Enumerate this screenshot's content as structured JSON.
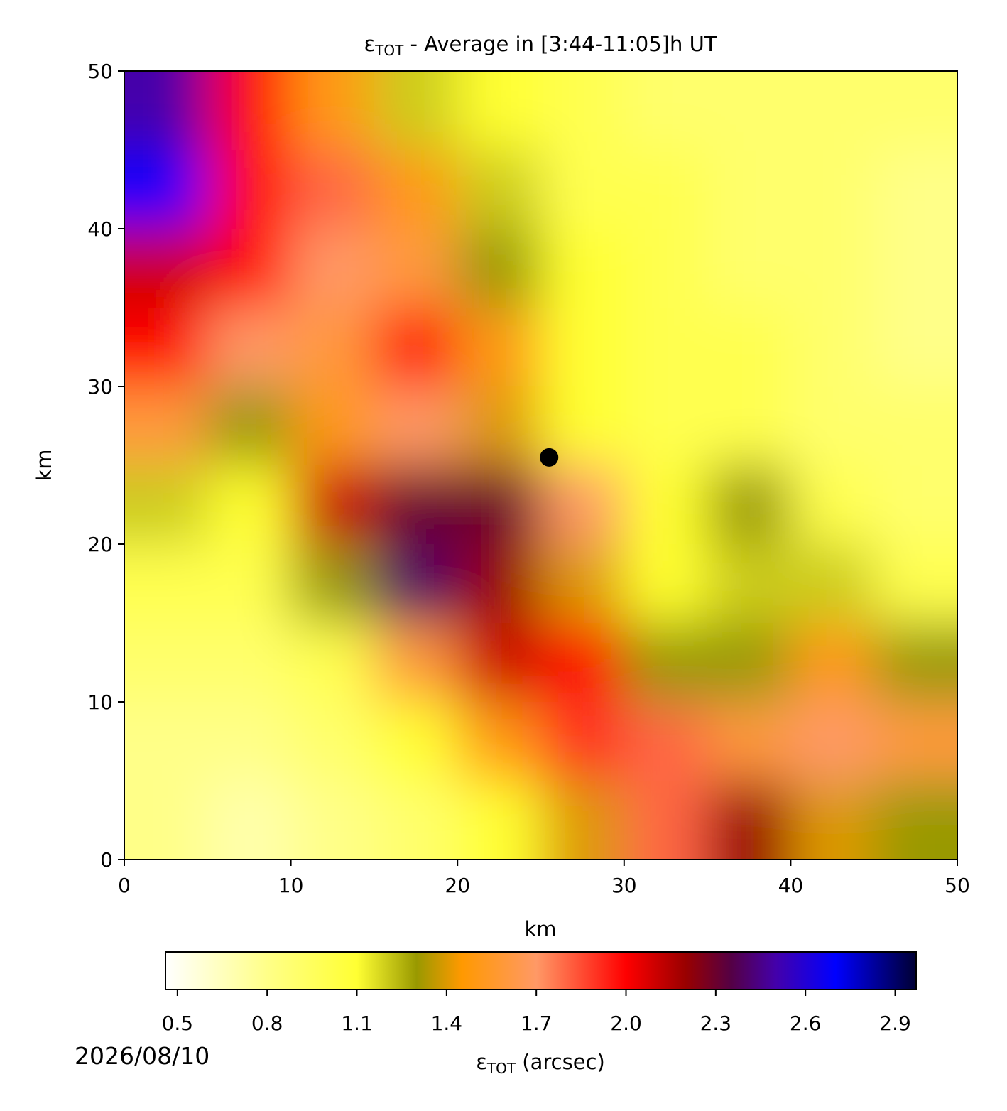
{
  "chart_data": {
    "type": "heatmap",
    "title_symbol": "ε",
    "title_subscript": "TOT",
    "title_rest": " - Average in [3:44-11:05]h UT",
    "x_label": "km",
    "y_label": "km",
    "xlim": [
      0,
      50
    ],
    "ylim": [
      0,
      50
    ],
    "xticks": [
      0,
      10,
      20,
      30,
      40,
      50
    ],
    "yticks": [
      0,
      10,
      20,
      30,
      40,
      50
    ],
    "x_edges": [
      0,
      5,
      10,
      15,
      20,
      25,
      30,
      35,
      40,
      45,
      50
    ],
    "y_edges": [
      50,
      45,
      40,
      35,
      30,
      25,
      20,
      15,
      10,
      5,
      0
    ],
    "values": [
      [
        2.5,
        2.0,
        1.5,
        1.2,
        1.1,
        1.0,
        0.9,
        0.9,
        0.9,
        0.9
      ],
      [
        2.7,
        2.0,
        1.8,
        1.5,
        1.2,
        1.0,
        1.0,
        0.9,
        0.9,
        0.8
      ],
      [
        2.1,
        2.0,
        1.7,
        1.6,
        1.3,
        1.1,
        1.0,
        0.9,
        0.9,
        0.8
      ],
      [
        2.0,
        1.7,
        1.6,
        2.0,
        1.5,
        1.1,
        1.0,
        1.0,
        0.9,
        0.8
      ],
      [
        1.6,
        1.3,
        1.5,
        1.7,
        1.4,
        1.1,
        1.0,
        1.0,
        0.9,
        0.9
      ],
      [
        1.2,
        1.1,
        2.1,
        2.3,
        2.3,
        1.7,
        1.1,
        1.3,
        1.0,
        0.9
      ],
      [
        1.0,
        1.0,
        1.3,
        2.4,
        2.2,
        1.4,
        1.1,
        1.2,
        1.2,
        1.0
      ],
      [
        0.9,
        0.9,
        1.0,
        1.6,
        2.1,
        2.0,
        1.3,
        1.3,
        1.5,
        1.3
      ],
      [
        0.8,
        0.8,
        0.9,
        1.1,
        1.5,
        1.9,
        1.8,
        1.6,
        1.7,
        1.6
      ],
      [
        0.8,
        0.7,
        0.8,
        0.9,
        1.1,
        1.4,
        1.8,
        2.2,
        1.4,
        1.3
      ]
    ],
    "marker": {
      "x": 25.5,
      "y": 25.5,
      "color": "#000000"
    },
    "clim": [
      0.46,
      2.97
    ],
    "colormap": [
      [
        0.46,
        "#ffffff"
      ],
      [
        0.8,
        "#ffff88"
      ],
      [
        1.1,
        "#ffff33"
      ],
      [
        1.3,
        "#999900"
      ],
      [
        1.45,
        "#ff9900"
      ],
      [
        1.7,
        "#ff9966"
      ],
      [
        2.0,
        "#ff0000"
      ],
      [
        2.2,
        "#990000"
      ],
      [
        2.35,
        "#550044"
      ],
      [
        2.5,
        "#4400aa"
      ],
      [
        2.7,
        "#0000ff"
      ],
      [
        2.97,
        "#000033"
      ]
    ],
    "colorbar_ticks": [
      0.5,
      0.8,
      1.1,
      1.4,
      1.7,
      {
        "value": 2,
        "label": "2.0"
      },
      2.3,
      2.6,
      2.9
    ],
    "colorbar_label_symbol": "ε",
    "colorbar_label_subscript": "TOT",
    "colorbar_label_rest": " (arcsec)",
    "date": "2026/08/10"
  }
}
